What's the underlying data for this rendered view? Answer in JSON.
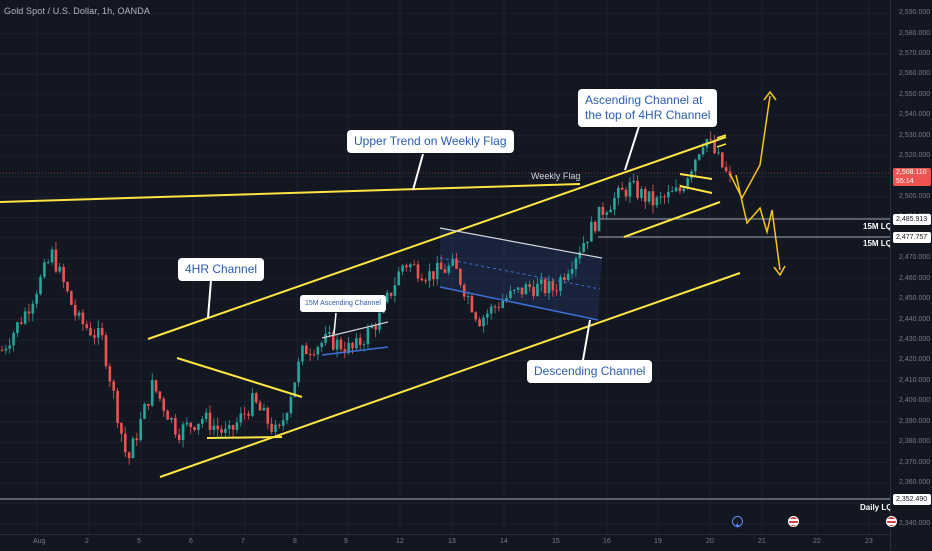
{
  "header": {
    "symbol_title": "Gold Spot / U.S. Dollar, 1h, OANDA"
  },
  "annotations": {
    "upper_trend": "Upper Trend on Weekly Flag",
    "weekly_flag": "Weekly Flag",
    "ascending_channel_4hr": "Ascending Channel at\nthe top of 4HR Channel",
    "channel_4hr": "4HR Channel",
    "ascending_15m": "15M Ascending Channel",
    "descending_channel": "Descending Channel",
    "lqz_1": "15M LQZ",
    "lqz_2": "15M LQZ",
    "daily_lqz": "Daily LQZ"
  },
  "price_boxes": {
    "current_price": "2,508.110",
    "countdown": "55:14",
    "lqz_1_price": "2,485.913",
    "lqz_2_price": "2,477.757",
    "daily_lqz_price": "2,352.490"
  },
  "colors": {
    "background": "#131722",
    "bull": "#26a69a",
    "bear": "#ef5350",
    "trendline": "#ffe443",
    "projection": "#f5c518",
    "descending_channel": "#3d6fd6",
    "callout_text": "#2a5db0"
  },
  "chart_data": {
    "type": "candlestick",
    "symbol": "Gold Spot / U.S. Dollar",
    "interval": "1h",
    "source": "OANDA",
    "y_axis": {
      "ticks": [
        "2,590.000",
        "2,580.000",
        "2,570.000",
        "2,560.000",
        "2,550.000",
        "2,540.000",
        "2,530.000",
        "2,520.000",
        "2,510.000",
        "2,500.000",
        "2,490.000",
        "2,480.000",
        "2,470.000",
        "2,460.000",
        "2,450.000",
        "2,440.000",
        "2,430.000",
        "2,420.000",
        "2,410.000",
        "2,400.000",
        "2,390.000",
        "2,380.000",
        "2,370.000",
        "2,360.000",
        "2,350.000",
        "2,340.000"
      ],
      "range": [
        2335,
        2595
      ]
    },
    "x_axis": {
      "tick_labels": [
        "Aug",
        "2",
        "5",
        "6",
        "7",
        "8",
        "9",
        "12",
        "13",
        "14",
        "15",
        "16",
        "19",
        "20",
        "21",
        "22",
        "23"
      ]
    },
    "key_levels": {
      "current_price": 2508.11,
      "lqz_15m_upper": 2485.913,
      "lqz_15m_lower": 2477.757,
      "daily_lqz": 2352.49
    },
    "price_path": [
      {
        "date": "Aug 1",
        "price": 2425
      },
      {
        "date": "Aug 1",
        "price": 2445
      },
      {
        "date": "Aug 2",
        "price": 2472
      },
      {
        "date": "Aug 2",
        "price": 2440
      },
      {
        "date": "Aug 5",
        "price": 2430
      },
      {
        "date": "Aug 5",
        "price": 2370
      },
      {
        "date": "Aug 5",
        "price": 2408
      },
      {
        "date": "Aug 6",
        "price": 2385
      },
      {
        "date": "Aug 6",
        "price": 2392
      },
      {
        "date": "Aug 7",
        "price": 2383
      },
      {
        "date": "Aug 7",
        "price": 2400
      },
      {
        "date": "Aug 8",
        "price": 2383
      },
      {
        "date": "Aug 8",
        "price": 2425
      },
      {
        "date": "Aug 9",
        "price": 2430
      },
      {
        "date": "Aug 9",
        "price": 2425
      },
      {
        "date": "Aug 12",
        "price": 2440
      },
      {
        "date": "Aug 12",
        "price": 2468
      },
      {
        "date": "Aug 13",
        "price": 2462
      },
      {
        "date": "Aug 14",
        "price": 2466
      },
      {
        "date": "Aug 14",
        "price": 2440
      },
      {
        "date": "Aug 15",
        "price": 2450
      },
      {
        "date": "Aug 15",
        "price": 2456
      },
      {
        "date": "Aug 16",
        "price": 2455
      },
      {
        "date": "Aug 16",
        "price": 2475
      },
      {
        "date": "Aug 16",
        "price": 2495
      },
      {
        "date": "Aug 19",
        "price": 2505
      },
      {
        "date": "Aug 19",
        "price": 2497
      },
      {
        "date": "Aug 20",
        "price": 2503
      },
      {
        "date": "Aug 20",
        "price": 2530
      },
      {
        "date": "Aug 20",
        "price": 2508
      }
    ]
  }
}
